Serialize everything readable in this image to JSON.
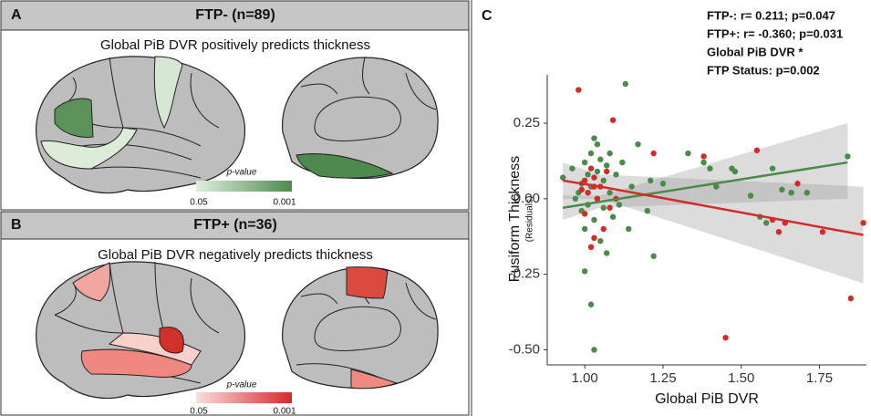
{
  "panels": [
    {
      "letter": "A",
      "title": "FTP- (n=89)",
      "subtitle": "Global PiB DVR positively predicts thickness",
      "colorbar": {
        "title": "p-value",
        "low": "0.05",
        "high": "0.001"
      }
    },
    {
      "letter": "B",
      "title": "FTP+ (n=36)",
      "subtitle": "Global PiB DVR negatively predicts thickness",
      "colorbar": {
        "title": "p-value",
        "low": "0.05",
        "high": "0.001"
      }
    }
  ],
  "chart_data": {
    "type": "scatter",
    "letter": "C",
    "annotations": [
      {
        "text": "FTP-: r= 0.211; p=0.047",
        "color": "#4a8a4a"
      },
      {
        "text": "FTP+: r= -0.360; p=0.031",
        "color": "#d42a2a"
      },
      {
        "text": "Global PiB DVR *",
        "color": "#111111"
      },
      {
        "text": "FTP Status: p=0.002",
        "color": "#111111"
      }
    ],
    "xlabel": "Global PiB DVR",
    "ylabel": "Fusiform Thickness",
    "ylabel_sub": "(Residuals)",
    "xlim": [
      0.88,
      1.9
    ],
    "ylim": [
      -0.55,
      0.41
    ],
    "xticks": [
      {
        "value": 1,
        "label": "1.00"
      },
      1.25,
      {
        "value": 1.5,
        "label": "1.50"
      },
      1.75
    ],
    "yticks": [
      {
        "value": 0.25,
        "label": "0.25"
      },
      {
        "value": 0,
        "label": "0.00"
      },
      {
        "value": -0.25,
        "label": "-0.25"
      },
      {
        "value": -0.5,
        "label": "-0.50"
      }
    ],
    "series": [
      {
        "color": "#4a8a4a",
        "x": [
          0.93,
          0.96,
          0.97,
          0.98,
          0.99,
          0.99,
          1.0,
          1.0,
          1.0,
          1.01,
          1.01,
          1.02,
          1.02,
          1.02,
          1.03,
          1.03,
          1.03,
          1.04,
          1.04,
          1.04,
          1.05,
          1.05,
          1.06,
          1.06,
          1.07,
          1.07,
          1.08,
          1.08,
          1.09,
          1.1,
          1.11,
          1.12,
          1.13,
          1.14,
          1.15,
          1.17,
          1.2,
          1.21,
          1.22,
          1.25,
          1.33,
          1.38,
          1.4,
          1.42,
          1.47,
          1.48,
          1.53,
          1.56,
          1.6,
          1.63,
          1.66,
          1.71,
          1.84,
          1.58
        ],
        "values": [
          0.07,
          0.1,
          0.0,
          0.02,
          -0.04,
          0.05,
          0.12,
          -0.1,
          -0.24,
          0.08,
          -0.02,
          0.15,
          -0.35,
          0.04,
          0.2,
          -0.07,
          -0.5,
          0.18,
          0.09,
          0.0,
          0.13,
          -0.14,
          0.06,
          -0.03,
          0.11,
          -0.18,
          0.02,
          0.15,
          -0.06,
          0.08,
          -0.02,
          0.12,
          0.38,
          -0.1,
          0.04,
          0.18,
          -0.04,
          0.06,
          -0.19,
          0.05,
          0.15,
          0.12,
          0.1,
          0.04,
          0.1,
          0.09,
          0.01,
          -0.06,
          0.1,
          0.03,
          0.02,
          0.02,
          0.14,
          -0.08
        ]
      },
      {
        "color": "#d42a2a",
        "x": [
          0.98,
          0.99,
          1.0,
          1.0,
          1.01,
          1.02,
          1.02,
          1.03,
          1.03,
          1.04,
          1.05,
          1.06,
          1.07,
          1.08,
          1.09,
          1.1,
          1.22,
          1.38,
          1.45,
          1.55,
          1.6,
          1.62,
          1.64,
          1.68,
          1.76,
          1.85,
          1.89,
          1.03
        ],
        "values": [
          0.36,
          0.03,
          0.06,
          -0.05,
          0.02,
          0.1,
          -0.16,
          0.07,
          -0.13,
          0.0,
          0.04,
          -0.1,
          0.09,
          -0.03,
          0.26,
          0.0,
          0.15,
          0.14,
          -0.46,
          0.16,
          -0.07,
          -0.11,
          -0.08,
          0.05,
          -0.11,
          -0.33,
          -0.08,
          0.04
        ]
      }
    ],
    "fits": [
      {
        "color": "#4a8a4a",
        "x": [
          0.93,
          1.05,
          1.84
        ],
        "values": [
          -0.03,
          -0.01,
          0.12
        ],
        "lower": [
          -0.07,
          -0.03,
          0.0
        ],
        "upper": [
          0.01,
          0.01,
          0.25
        ]
      },
      {
        "color": "#d42a2a",
        "x": [
          0.93,
          1.05,
          1.89
        ],
        "values": [
          0.06,
          0.04,
          -0.12
        ],
        "lower": [
          0.0,
          0.0,
          -0.28
        ],
        "upper": [
          0.12,
          0.08,
          0.04
        ]
      }
    ]
  }
}
